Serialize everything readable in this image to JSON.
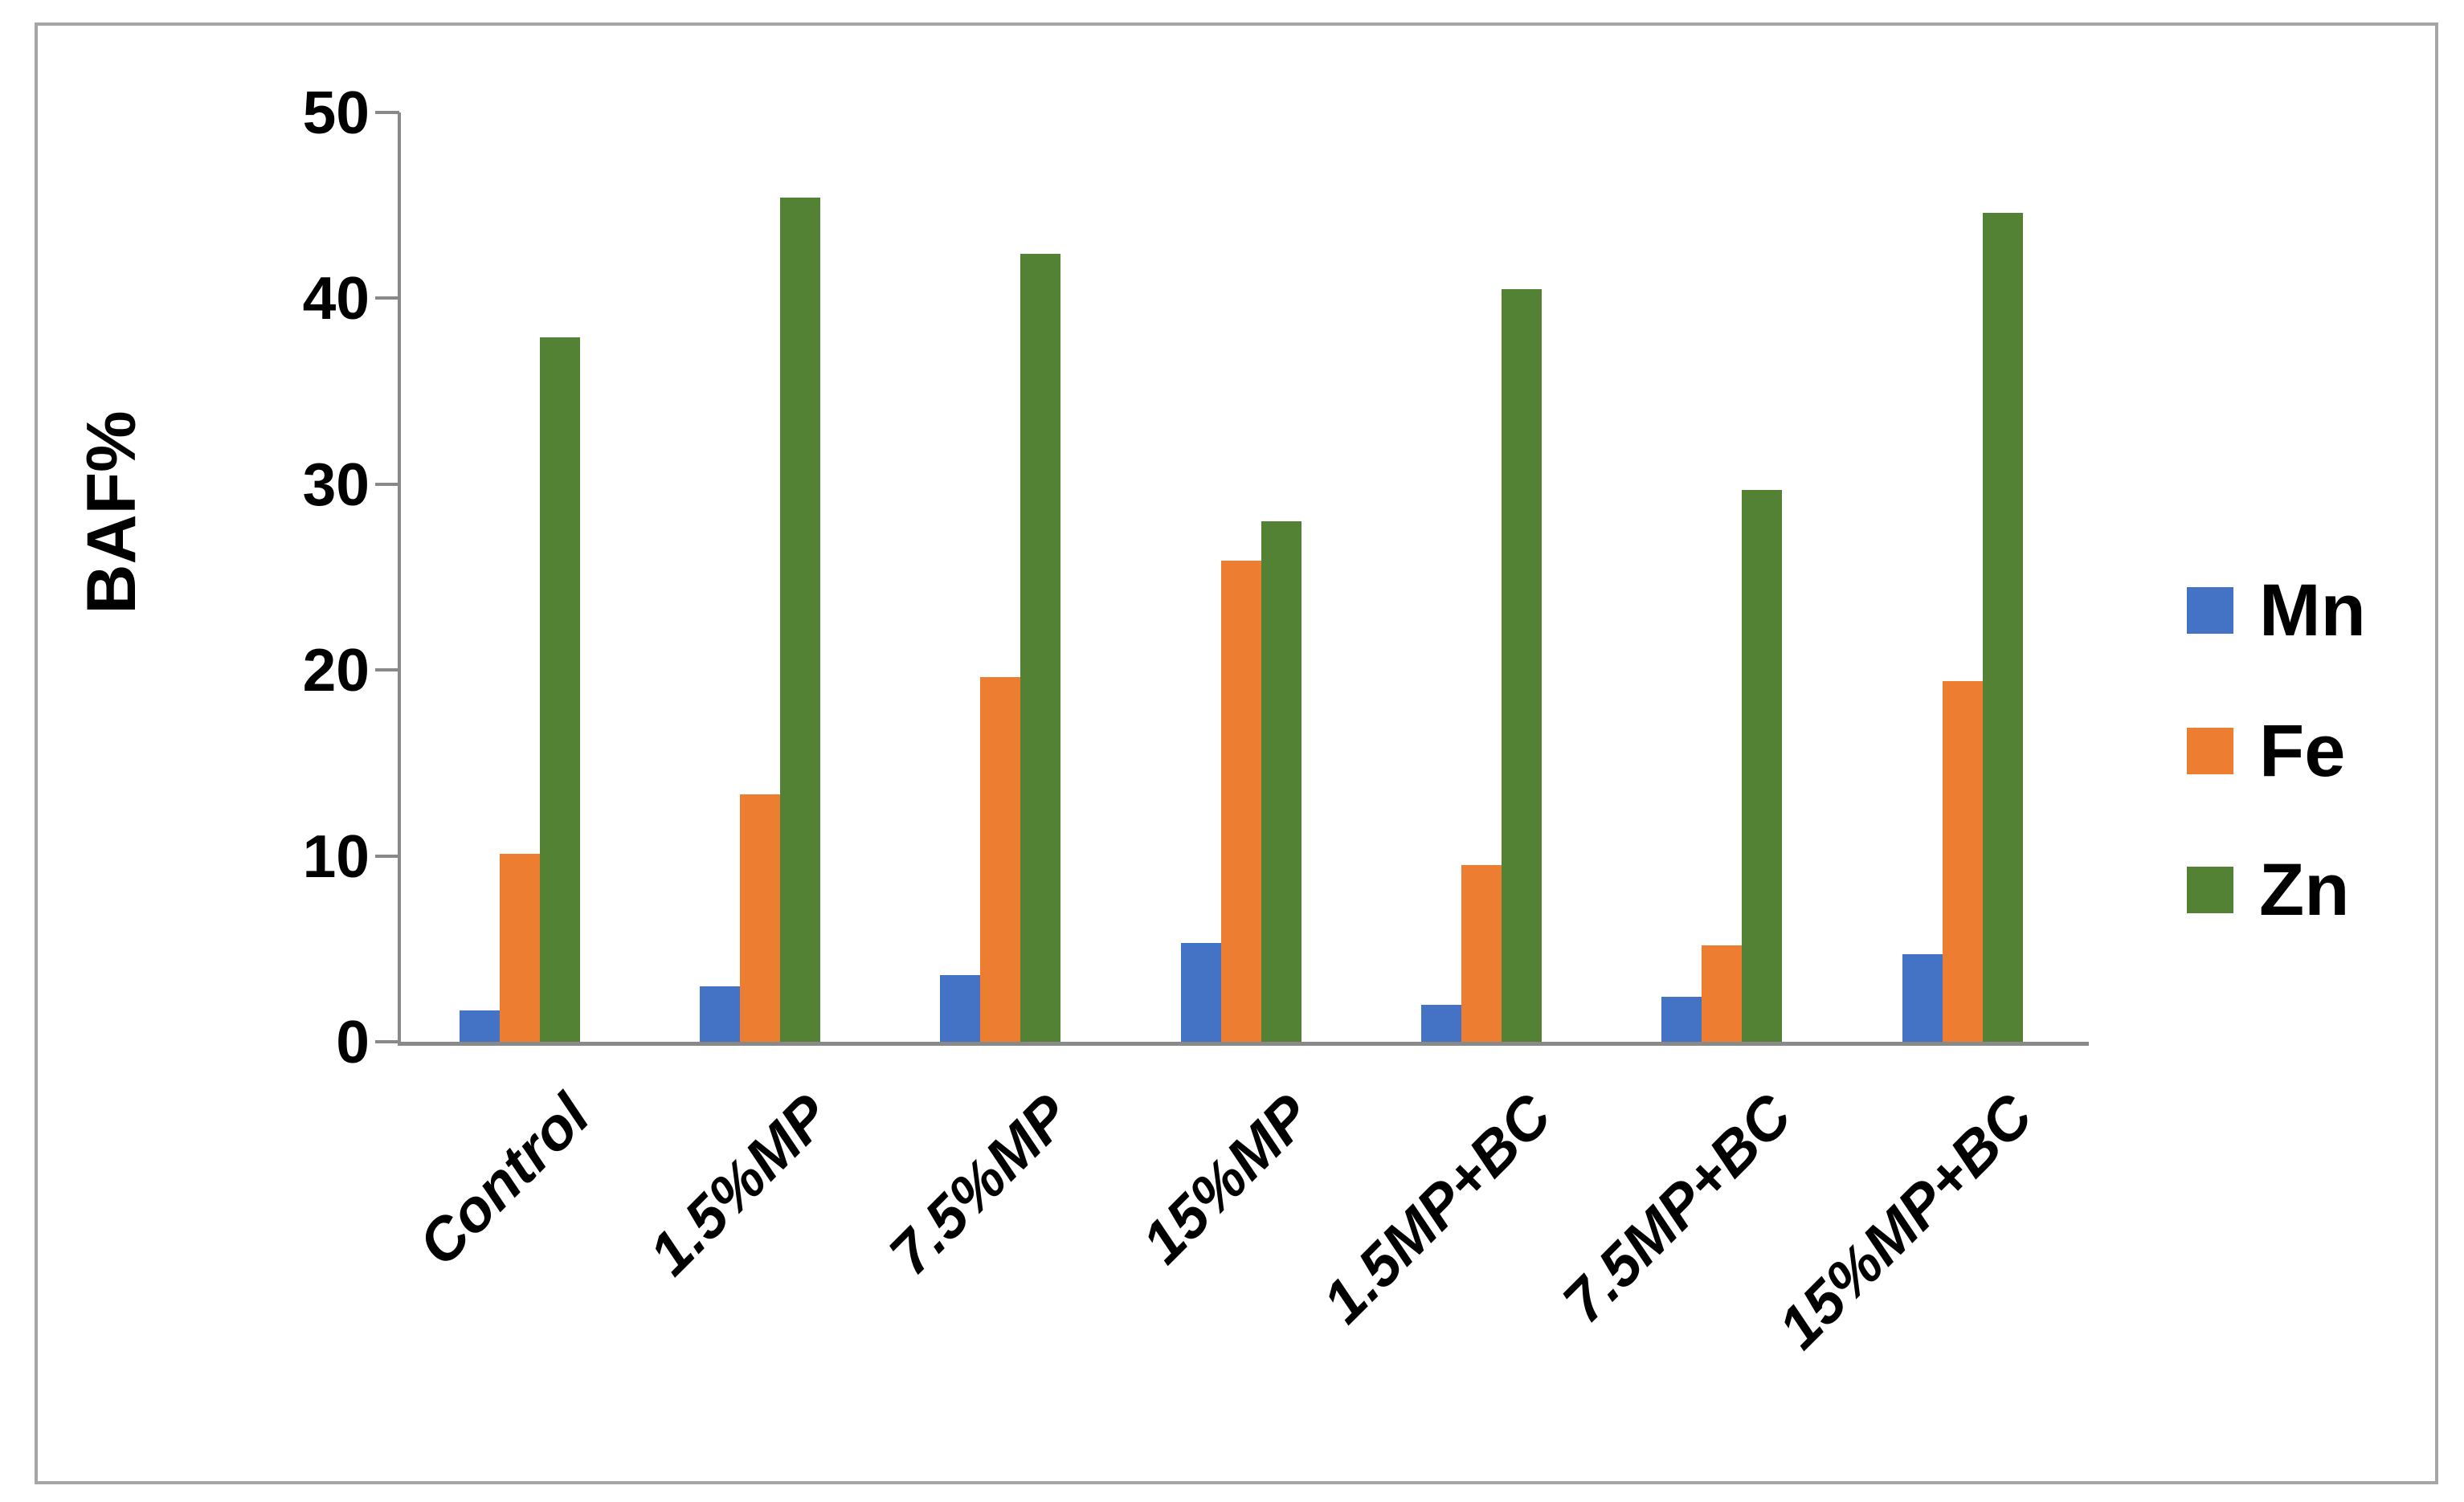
{
  "figure": {
    "background": "#ffffff",
    "border_color": "#a6a6a6",
    "axis_color": "#898989",
    "text_color": "#000000"
  },
  "chart_data": {
    "type": "bar",
    "title": "",
    "xlabel": "",
    "ylabel": "BAF%",
    "ylim": [
      0,
      50
    ],
    "yticks": [
      0,
      10,
      20,
      30,
      40,
      50
    ],
    "grid": false,
    "legend_position": "right",
    "categories": [
      "Control",
      "1.5%MP",
      "7.5%MP",
      "15%MP",
      "1.5MP+BC",
      "7.5MP+BC",
      "15%MP+BC"
    ],
    "series": [
      {
        "name": "Mn",
        "color": "#4472C4",
        "values": [
          1.7,
          3.0,
          3.6,
          5.3,
          2.0,
          2.4,
          4.7
        ]
      },
      {
        "name": "Fe",
        "color": "#ED7D31",
        "values": [
          10.1,
          13.3,
          19.6,
          25.9,
          9.5,
          5.2,
          19.4
        ]
      },
      {
        "name": "Zn",
        "color": "#548235",
        "values": [
          37.9,
          45.4,
          42.4,
          28.0,
          40.5,
          29.7,
          44.6
        ]
      }
    ]
  }
}
